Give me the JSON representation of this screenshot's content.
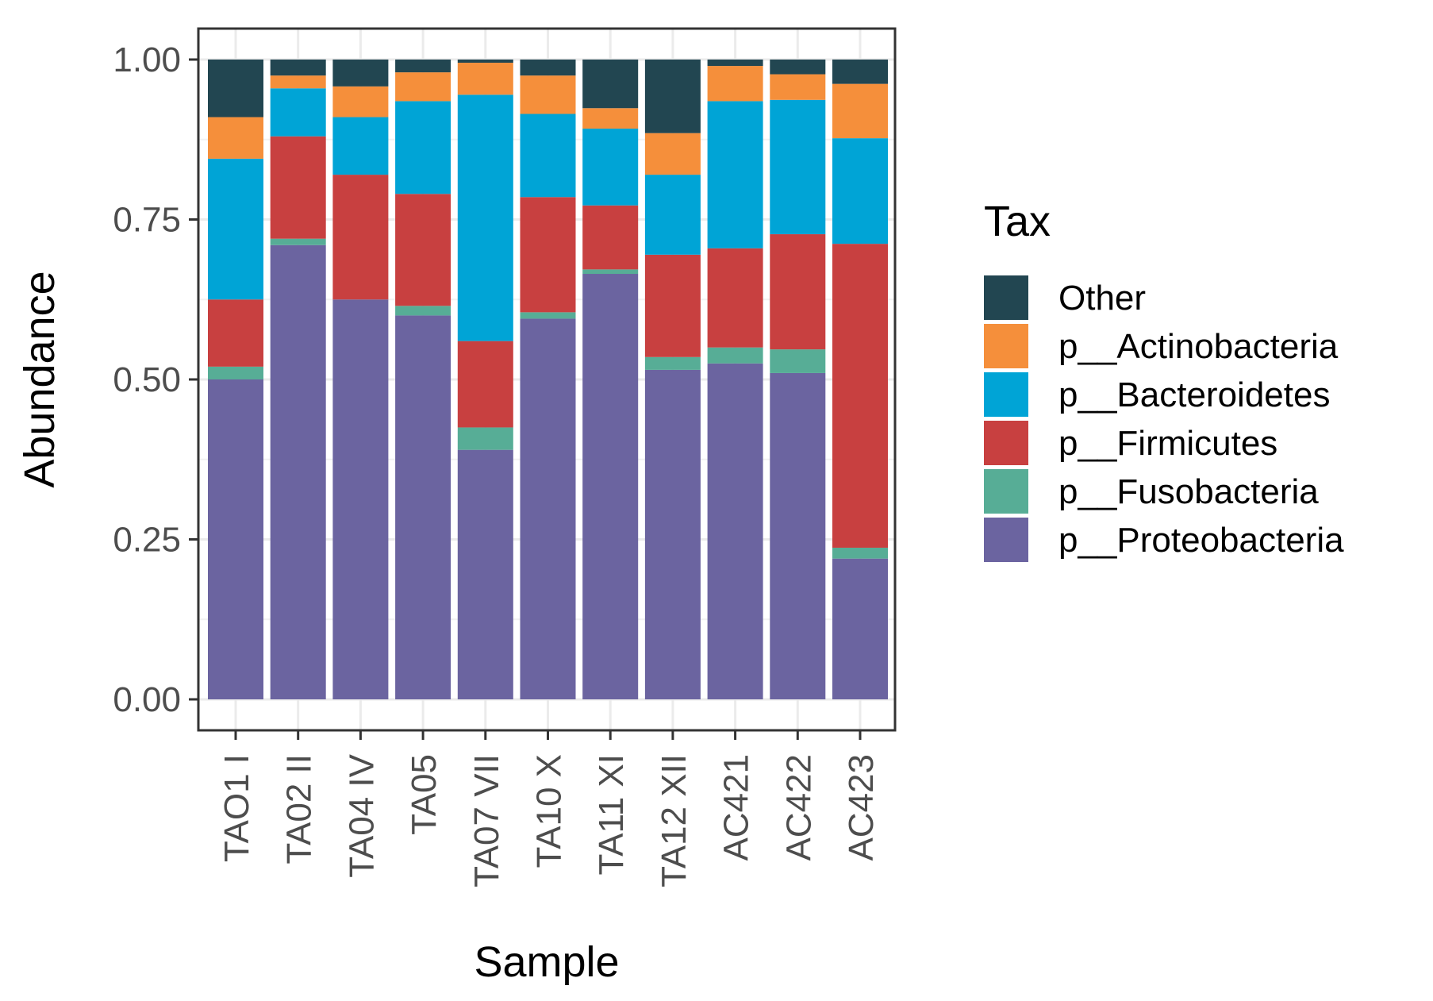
{
  "chart_data": {
    "type": "bar",
    "stacked": true,
    "title": "",
    "xlabel": "Sample",
    "ylabel": "Abundance",
    "ylim": [
      0,
      1
    ],
    "yticks": [
      "0.00",
      "0.25",
      "0.50",
      "0.75",
      "1.00"
    ],
    "grid": true,
    "legend_position": "right",
    "legend_title": "Tax",
    "categories": [
      "TAO1 I",
      "TA02 II",
      "TA04 IV",
      "TA05",
      "TA07 VII",
      "TA10 X",
      "TA11 XI",
      "TA12 XII",
      "AC421",
      "AC422",
      "AC423"
    ],
    "series": [
      {
        "name": "p__Proteobacteria",
        "color": "#6b64a0",
        "values": [
          0.5,
          0.71,
          0.625,
          0.6,
          0.39,
          0.595,
          0.665,
          0.515,
          0.525,
          0.51,
          0.22
        ]
      },
      {
        "name": "p__Fusobacteria",
        "color": "#57ad96",
        "values": [
          0.02,
          0.01,
          0.0,
          0.015,
          0.035,
          0.01,
          0.007,
          0.02,
          0.025,
          0.037,
          0.017
        ]
      },
      {
        "name": "p__Firmicutes",
        "color": "#c84040",
        "values": [
          0.105,
          0.16,
          0.195,
          0.175,
          0.135,
          0.18,
          0.1,
          0.16,
          0.155,
          0.18,
          0.475
        ]
      },
      {
        "name": "p__Bacteroidetes",
        "color": "#00a4d6",
        "values": [
          0.22,
          0.075,
          0.09,
          0.145,
          0.385,
          0.13,
          0.12,
          0.125,
          0.23,
          0.21,
          0.165
        ]
      },
      {
        "name": "p__Actinobacteria",
        "color": "#f58f3b",
        "values": [
          0.065,
          0.02,
          0.048,
          0.045,
          0.05,
          0.06,
          0.032,
          0.065,
          0.055,
          0.04,
          0.085
        ]
      },
      {
        "name": "Other",
        "color": "#224651",
        "values": [
          0.09,
          0.025,
          0.042,
          0.02,
          0.005,
          0.025,
          0.076,
          0.115,
          0.01,
          0.023,
          0.038
        ]
      }
    ],
    "legend_order": [
      "Other",
      "p__Actinobacteria",
      "p__Bacteroidetes",
      "p__Firmicutes",
      "p__Fusobacteria",
      "p__Proteobacteria"
    ]
  }
}
